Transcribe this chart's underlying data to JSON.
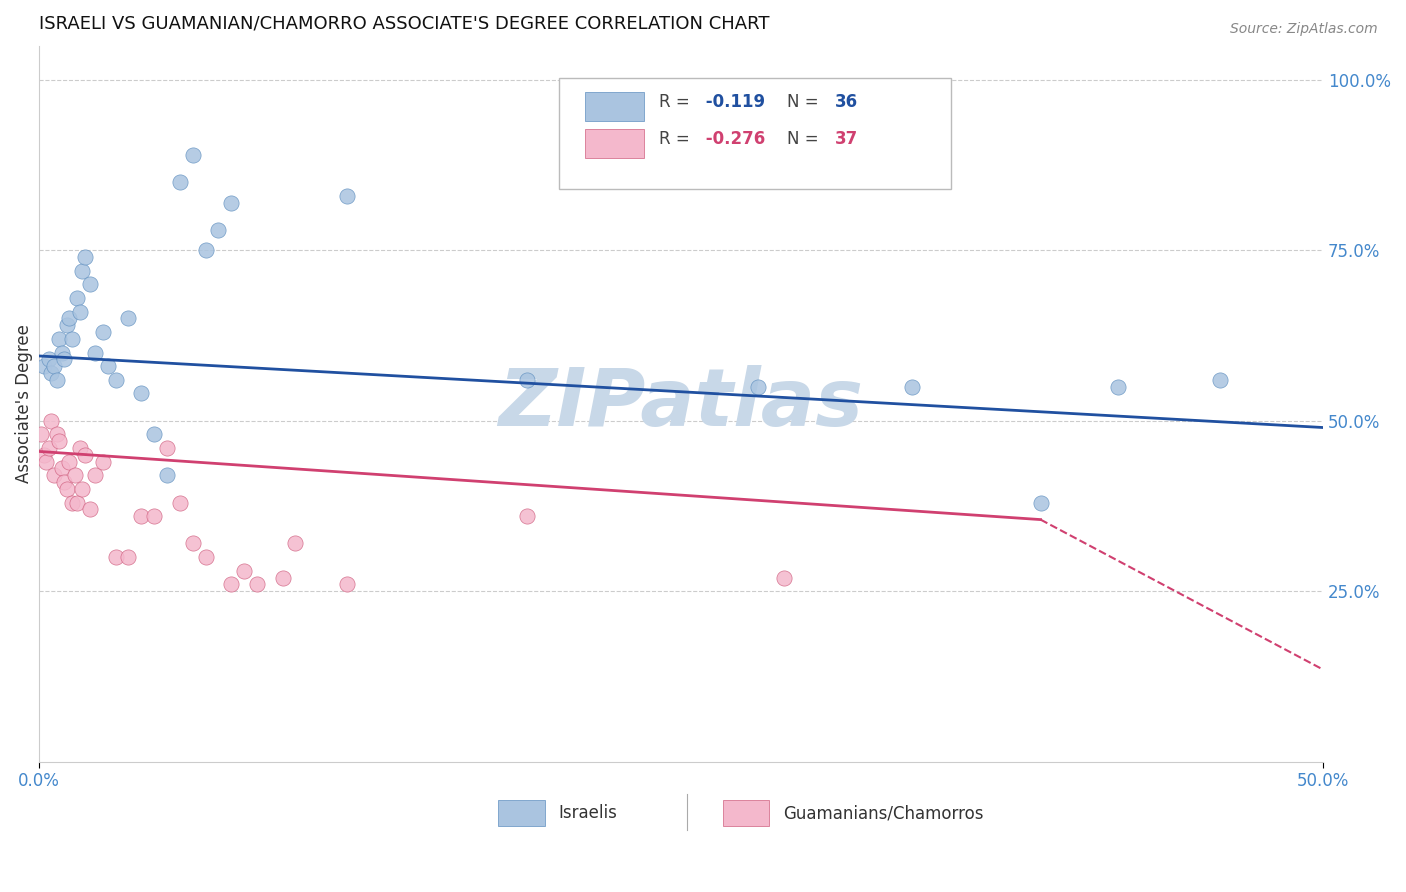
{
  "title": "ISRAELI VS GUAMANIAN/CHAMORRO ASSOCIATE'S DEGREE CORRELATION CHART",
  "source": "Source: ZipAtlas.com",
  "ylabel": "Associate's Degree",
  "y_tick_labels": [
    "25.0%",
    "50.0%",
    "75.0%",
    "100.0%"
  ],
  "y_tick_positions": [
    0.25,
    0.5,
    0.75,
    1.0
  ],
  "xlim": [
    0.0,
    0.5
  ],
  "ylim": [
    0.0,
    1.05
  ],
  "israeli_scatter": [
    [
      0.002,
      0.58
    ],
    [
      0.004,
      0.59
    ],
    [
      0.005,
      0.57
    ],
    [
      0.006,
      0.58
    ],
    [
      0.007,
      0.56
    ],
    [
      0.008,
      0.62
    ],
    [
      0.009,
      0.6
    ],
    [
      0.01,
      0.59
    ],
    [
      0.011,
      0.64
    ],
    [
      0.012,
      0.65
    ],
    [
      0.013,
      0.62
    ],
    [
      0.015,
      0.68
    ],
    [
      0.016,
      0.66
    ],
    [
      0.017,
      0.72
    ],
    [
      0.018,
      0.74
    ],
    [
      0.02,
      0.7
    ],
    [
      0.022,
      0.6
    ],
    [
      0.025,
      0.63
    ],
    [
      0.027,
      0.58
    ],
    [
      0.03,
      0.56
    ],
    [
      0.035,
      0.65
    ],
    [
      0.04,
      0.54
    ],
    [
      0.045,
      0.48
    ],
    [
      0.05,
      0.42
    ],
    [
      0.055,
      0.85
    ],
    [
      0.06,
      0.89
    ],
    [
      0.065,
      0.75
    ],
    [
      0.07,
      0.78
    ],
    [
      0.075,
      0.82
    ],
    [
      0.12,
      0.83
    ],
    [
      0.19,
      0.56
    ],
    [
      0.28,
      0.55
    ],
    [
      0.34,
      0.55
    ],
    [
      0.42,
      0.55
    ],
    [
      0.46,
      0.56
    ],
    [
      0.39,
      0.38
    ]
  ],
  "guamanian_scatter": [
    [
      0.001,
      0.48
    ],
    [
      0.002,
      0.45
    ],
    [
      0.003,
      0.44
    ],
    [
      0.004,
      0.46
    ],
    [
      0.005,
      0.5
    ],
    [
      0.006,
      0.42
    ],
    [
      0.007,
      0.48
    ],
    [
      0.008,
      0.47
    ],
    [
      0.009,
      0.43
    ],
    [
      0.01,
      0.41
    ],
    [
      0.011,
      0.4
    ],
    [
      0.012,
      0.44
    ],
    [
      0.013,
      0.38
    ],
    [
      0.014,
      0.42
    ],
    [
      0.015,
      0.38
    ],
    [
      0.016,
      0.46
    ],
    [
      0.017,
      0.4
    ],
    [
      0.018,
      0.45
    ],
    [
      0.02,
      0.37
    ],
    [
      0.022,
      0.42
    ],
    [
      0.025,
      0.44
    ],
    [
      0.03,
      0.3
    ],
    [
      0.035,
      0.3
    ],
    [
      0.04,
      0.36
    ],
    [
      0.045,
      0.36
    ],
    [
      0.05,
      0.46
    ],
    [
      0.055,
      0.38
    ],
    [
      0.06,
      0.32
    ],
    [
      0.065,
      0.3
    ],
    [
      0.075,
      0.26
    ],
    [
      0.08,
      0.28
    ],
    [
      0.085,
      0.26
    ],
    [
      0.095,
      0.27
    ],
    [
      0.1,
      0.32
    ],
    [
      0.12,
      0.26
    ],
    [
      0.19,
      0.36
    ],
    [
      0.29,
      0.27
    ]
  ],
  "israeli_line": {
    "x0": 0.0,
    "y0": 0.595,
    "x1": 0.5,
    "y1": 0.49
  },
  "guamanian_line": {
    "x0": 0.0,
    "y0": 0.455,
    "x1": 0.39,
    "y1": 0.355
  },
  "guamanian_line_dashed": {
    "x0": 0.39,
    "y0": 0.355,
    "x1": 0.5,
    "y1": 0.135
  },
  "watermark": "ZIPatlas",
  "watermark_color": "#c8d8e8",
  "scatter_size": 120,
  "israeli_color": "#aac4e0",
  "israeli_edge": "#6090c0",
  "guamanian_color": "#f4b8cc",
  "guamanian_edge": "#d06080",
  "israeli_line_color": "#2050a0",
  "guamanian_line_color": "#d04070",
  "grid_color": "#cccccc",
  "bg_color": "#ffffff",
  "title_fontsize": 13,
  "axis_label_fontsize": 12,
  "tick_fontsize": 12,
  "source_fontsize": 10,
  "legend_isr_r": "-0.119",
  "legend_isr_n": "36",
  "legend_gua_r": "-0.276",
  "legend_gua_n": "37",
  "bottom_labels": [
    "Israelis",
    "Guamanians/Chamorros"
  ]
}
